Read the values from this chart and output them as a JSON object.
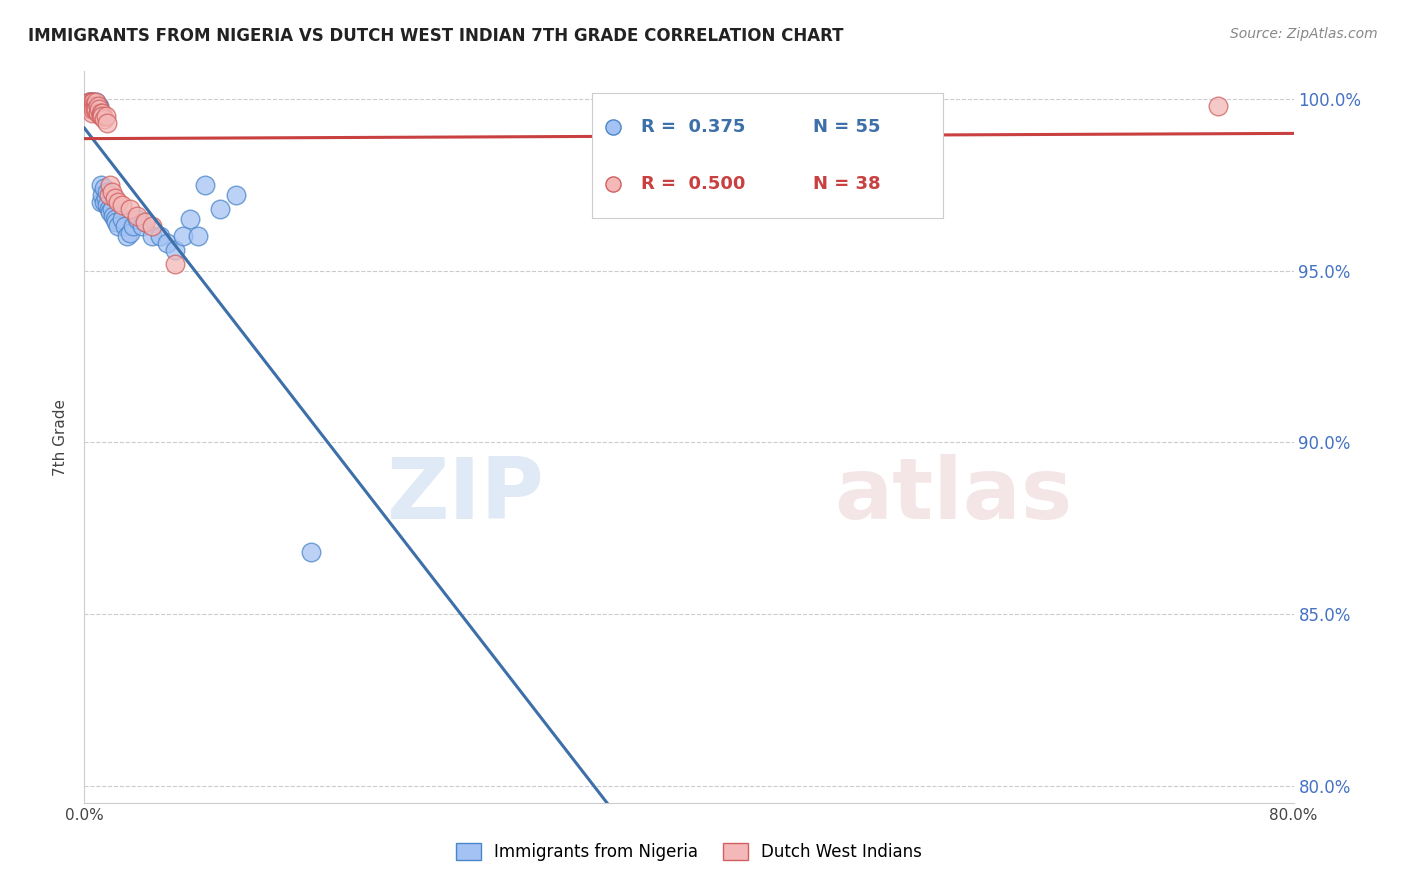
{
  "title": "IMMIGRANTS FROM NIGERIA VS DUTCH WEST INDIAN 7TH GRADE CORRELATION CHART",
  "source": "Source: ZipAtlas.com",
  "ylabel": "7th Grade",
  "x_min": 0.0,
  "x_max": 0.08,
  "y_min": 0.795,
  "y_max": 1.008,
  "y_ticks": [
    0.8,
    0.85,
    0.9,
    0.95,
    1.0
  ],
  "y_tick_labels": [
    "80.0%",
    "85.0%",
    "90.0%",
    "95.0%",
    "100.0%"
  ],
  "blue_color": "#a4c2f4",
  "pink_color": "#f4b8b8",
  "blue_edge_color": "#4a86c8",
  "pink_edge_color": "#d06060",
  "blue_line_color": "#3d6fa8",
  "pink_line_color": "#c94040",
  "legend_R_blue": "R =  0.375",
  "legend_N_blue": "N = 55",
  "legend_R_pink": "R =  0.500",
  "legend_N_pink": "N = 38",
  "watermark_zip": "ZIP",
  "watermark_atlas": "atlas",
  "legend_label_blue": "Immigrants from Nigeria",
  "legend_label_pink": "Dutch West Indians",
  "blue_x": [
    0.0003,
    0.0003,
    0.0004,
    0.0004,
    0.0005,
    0.0005,
    0.0005,
    0.0006,
    0.0006,
    0.0006,
    0.0007,
    0.0007,
    0.0008,
    0.0008,
    0.0008,
    0.0009,
    0.0009,
    0.0009,
    0.001,
    0.001,
    0.001,
    0.0011,
    0.0011,
    0.0012,
    0.0013,
    0.0013,
    0.0014,
    0.0015,
    0.0015,
    0.0016,
    0.0017,
    0.0018,
    0.0019,
    0.002,
    0.0021,
    0.0022,
    0.0025,
    0.0027,
    0.0028,
    0.003,
    0.0032,
    0.0035,
    0.0038,
    0.004,
    0.0045,
    0.005,
    0.0055,
    0.006,
    0.0065,
    0.007,
    0.0075,
    0.008,
    0.009,
    0.01,
    0.015
  ],
  "blue_y": [
    0.999,
    0.998,
    0.999,
    0.998,
    0.999,
    0.998,
    0.997,
    0.999,
    0.998,
    0.997,
    0.998,
    0.997,
    0.999,
    0.998,
    0.997,
    0.998,
    0.997,
    0.996,
    0.998,
    0.997,
    0.996,
    0.975,
    0.97,
    0.972,
    0.974,
    0.97,
    0.971,
    0.973,
    0.969,
    0.968,
    0.967,
    0.968,
    0.966,
    0.965,
    0.964,
    0.963,
    0.965,
    0.963,
    0.96,
    0.961,
    0.963,
    0.965,
    0.963,
    0.964,
    0.96,
    0.96,
    0.958,
    0.956,
    0.96,
    0.965,
    0.96,
    0.975,
    0.968,
    0.972,
    0.868
  ],
  "pink_x": [
    0.0003,
    0.0003,
    0.0004,
    0.0004,
    0.0004,
    0.0005,
    0.0005,
    0.0005,
    0.0005,
    0.0006,
    0.0006,
    0.0006,
    0.0007,
    0.0007,
    0.0008,
    0.0008,
    0.0009,
    0.0009,
    0.001,
    0.0011,
    0.0011,
    0.0012,
    0.0012,
    0.0013,
    0.0014,
    0.0015,
    0.0016,
    0.0017,
    0.0018,
    0.002,
    0.0022,
    0.0025,
    0.003,
    0.0035,
    0.004,
    0.0045,
    0.006,
    0.075
  ],
  "pink_y": [
    0.999,
    0.998,
    0.999,
    0.998,
    0.997,
    0.999,
    0.998,
    0.997,
    0.996,
    0.999,
    0.998,
    0.997,
    0.998,
    0.997,
    0.999,
    0.997,
    0.998,
    0.996,
    0.997,
    0.996,
    0.995,
    0.996,
    0.995,
    0.994,
    0.995,
    0.993,
    0.972,
    0.975,
    0.973,
    0.971,
    0.97,
    0.969,
    0.968,
    0.966,
    0.964,
    0.963,
    0.952,
    0.998
  ]
}
